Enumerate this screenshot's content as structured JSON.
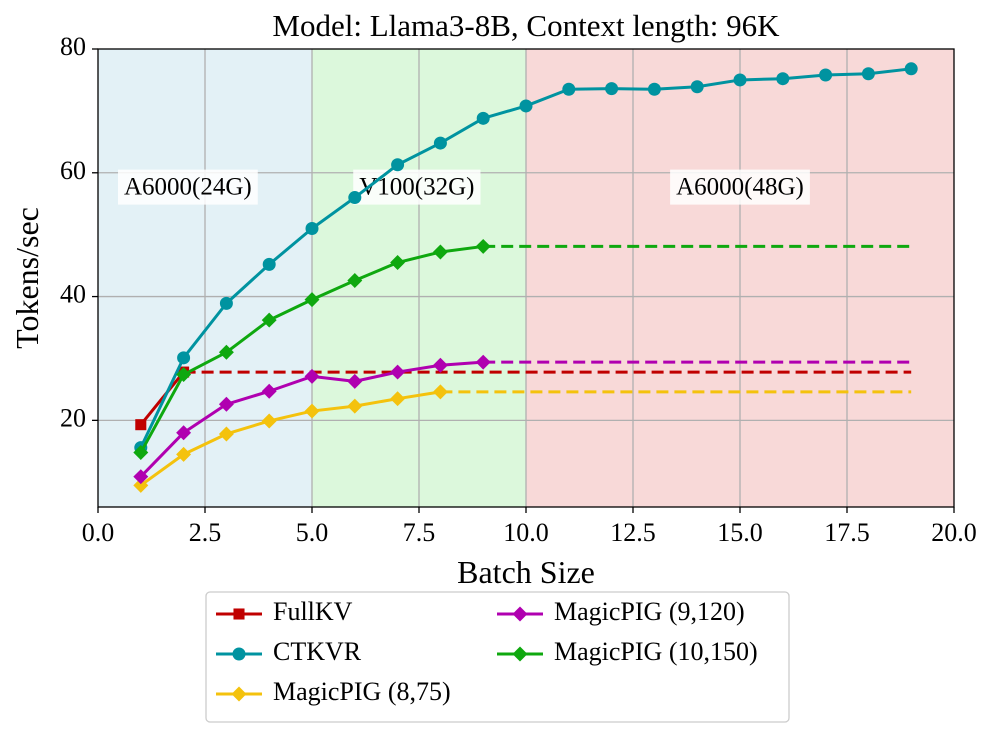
{
  "chart_data": {
    "type": "line",
    "title": "Model: Llama3-8B, Context length: 96K",
    "xlabel": "Batch Size",
    "ylabel": "Tokens/sec",
    "xlim": [
      0,
      20
    ],
    "ylim": [
      6,
      80
    ],
    "xticks": [
      0,
      2.5,
      5,
      7.5,
      10,
      12.5,
      15,
      17.5,
      20
    ],
    "xtick_labels": [
      "0.0",
      "2.5",
      "5.0",
      "7.5",
      "10.0",
      "12.5",
      "15.0",
      "17.5",
      "20.0"
    ],
    "yticks": [
      20,
      40,
      60,
      80
    ],
    "ytick_labels": [
      "20",
      "40",
      "60",
      "80"
    ],
    "grid": true,
    "regions": [
      {
        "label": "A6000(24G)",
        "x_start": 0,
        "x_end": 5,
        "color": "#e3f1f6",
        "label_x": 2.1,
        "label_y": 57.4
      },
      {
        "label": "V100(32G)",
        "x_start": 5,
        "x_end": 10,
        "color": "#dcf8dc",
        "label_x": 7.45,
        "label_y": 57.4
      },
      {
        "label": "A6000(48G)",
        "x_start": 10,
        "x_end": 20,
        "color": "#f8d9d8",
        "label_x": 15.0,
        "label_y": 57.4
      }
    ],
    "series": [
      {
        "name": "FullKV",
        "color": "#c00000",
        "marker": "square",
        "x": [
          1,
          2
        ],
        "y": [
          19.3,
          27.8
        ],
        "dashed_extension": {
          "from_x": 2,
          "to_x": 19,
          "y": 27.8
        }
      },
      {
        "name": "CTKVR",
        "color": "#0093a0",
        "marker": "circle",
        "x": [
          1,
          2,
          3,
          4,
          5,
          6,
          7,
          8,
          9,
          10,
          11,
          12,
          13,
          14,
          15,
          16,
          17,
          18,
          19
        ],
        "y": [
          15.6,
          30.1,
          38.9,
          45.2,
          51.0,
          56.0,
          61.3,
          64.8,
          68.8,
          70.8,
          73.5,
          73.6,
          73.5,
          73.9,
          75.0,
          75.2,
          75.8,
          76.0,
          76.8
        ]
      },
      {
        "name": "MagicPIG (8,75)",
        "color": "#f4c20d",
        "marker": "diamond",
        "x": [
          1,
          2,
          3,
          4,
          5,
          6,
          7,
          8
        ],
        "y": [
          9.5,
          14.5,
          17.8,
          19.9,
          21.5,
          22.3,
          23.5,
          24.6
        ],
        "dashed_extension": {
          "from_x": 8,
          "to_x": 19,
          "y": 24.6
        }
      },
      {
        "name": "MagicPIG (9,120)",
        "color": "#b000b0",
        "marker": "diamond",
        "x": [
          1,
          2,
          3,
          4,
          5,
          6,
          7,
          8,
          9
        ],
        "y": [
          10.9,
          18.0,
          22.6,
          24.7,
          27.1,
          26.3,
          27.8,
          28.9,
          29.4
        ],
        "dashed_extension": {
          "from_x": 9,
          "to_x": 19,
          "y": 29.4
        }
      },
      {
        "name": "MagicPIG (10,150)",
        "color": "#0fa80f",
        "marker": "diamond",
        "x": [
          1,
          2,
          3,
          4,
          5,
          6,
          7,
          8,
          9
        ],
        "y": [
          14.8,
          27.4,
          31.0,
          36.2,
          39.5,
          42.6,
          45.5,
          47.2,
          48.1
        ],
        "dashed_extension": {
          "from_x": 9,
          "to_x": 19,
          "y": 48.1
        }
      }
    ],
    "legend": {
      "placement": "bottom-center",
      "columns": 2,
      "order": [
        "FullKV",
        "CTKVR",
        "MagicPIG (8,75)",
        "MagicPIG (9,120)",
        "MagicPIG (10,150)"
      ]
    }
  }
}
